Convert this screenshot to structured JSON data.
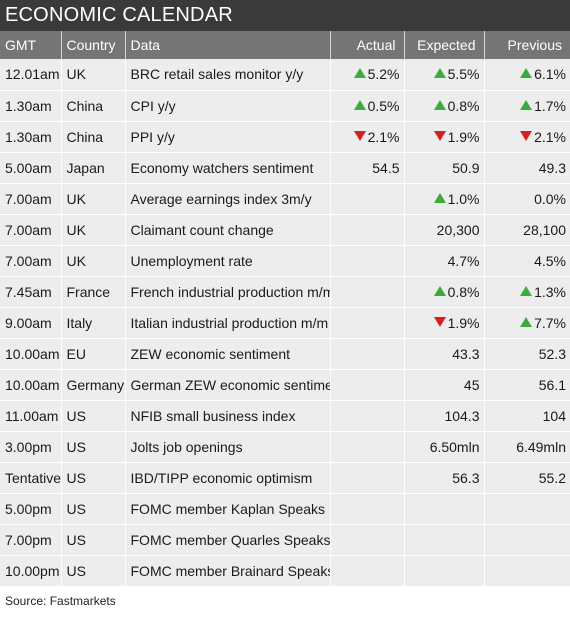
{
  "title": "ECONOMIC CALENDAR",
  "columns": {
    "gmt": "GMT",
    "country": "Country",
    "data": "Data",
    "actual": "Actual",
    "expected": "Expected",
    "previous": "Previous"
  },
  "colors": {
    "up": "#3cab3c",
    "down": "#d42020",
    "header": "#757575",
    "title": "#3a3a3a"
  },
  "rows": [
    {
      "gmt": "12.01am",
      "country": "UK",
      "data": "BRC retail sales monitor y/y",
      "actual": "5.2%",
      "actual_dir": "up",
      "expected": "5.5%",
      "expected_dir": "up",
      "previous": "6.1%",
      "previous_dir": "up"
    },
    {
      "gmt": "1.30am",
      "country": "China",
      "data": "CPI y/y",
      "actual": "0.5%",
      "actual_dir": "up",
      "expected": "0.8%",
      "expected_dir": "up",
      "previous": "1.7%",
      "previous_dir": "up"
    },
    {
      "gmt": "1.30am",
      "country": "China",
      "data": "PPI y/y",
      "actual": "2.1%",
      "actual_dir": "down",
      "expected": "1.9%",
      "expected_dir": "down",
      "previous": "2.1%",
      "previous_dir": "down"
    },
    {
      "gmt": "5.00am",
      "country": "Japan",
      "data": " Economy watchers sentiment",
      "actual": "54.5",
      "expected": "50.9",
      "previous": "49.3"
    },
    {
      "gmt": "7.00am",
      "country": "UK",
      "data": " Average earnings index 3m/y",
      "actual": "",
      "expected": "1.0%",
      "expected_dir": "up",
      "previous": "0.0%"
    },
    {
      "gmt": "7.00am",
      "country": "UK",
      "data": "Claimant count change",
      "actual": "",
      "expected": "20,300",
      "previous": "28,100"
    },
    {
      "gmt": "7.00am",
      "country": "UK",
      "data": "Unemployment rate",
      "actual": "",
      "expected": "4.7%",
      "previous": "4.5%"
    },
    {
      "gmt": "7.45am",
      "country": "France",
      "data": "French industrial production m/m",
      "actual": "",
      "expected": "0.8%",
      "expected_dir": "up",
      "previous": "1.3%",
      "previous_dir": "up"
    },
    {
      "gmt": "9.00am",
      "country": "Italy",
      "data": "Italian industrial production m/m",
      "actual": "",
      "expected": "1.9%",
      "expected_dir": "down",
      "previous": "7.7%",
      "previous_dir": "up"
    },
    {
      "gmt": "10.00am",
      "country": "EU",
      "data": " ZEW economic sentiment",
      "actual": "",
      "expected": "43.3",
      "previous": "52.3"
    },
    {
      "gmt": "10.00am",
      "country": "Germany",
      "data": "German ZEW economic sentiment",
      "actual": "",
      "expected": "45",
      "previous": "56.1"
    },
    {
      "gmt": "11.00am",
      "country": "US",
      "data": "NFIB small business index",
      "actual": "",
      "expected": "104.3",
      "previous": "104"
    },
    {
      "gmt": "3.00pm",
      "country": "US",
      "data": "Jolts job openings",
      "actual": "",
      "expected": "6.50mln",
      "previous": "6.49mln"
    },
    {
      "gmt": "Tentative",
      "country": "US",
      "data": " IBD/TIPP economic optimism",
      "actual": "",
      "expected": "56.3",
      "previous": "55.2"
    },
    {
      "gmt": "5.00pm",
      "country": "US",
      "data": " FOMC member Kaplan Speaks",
      "actual": "",
      "expected": "",
      "previous": ""
    },
    {
      "gmt": "7.00pm",
      "country": "US",
      "data": "FOMC member Quarles Speaks",
      "actual": "",
      "expected": "",
      "previous": ""
    },
    {
      "gmt": "10.00pm",
      "country": "US",
      "data": " FOMC member Brainard Speaks",
      "actual": "",
      "expected": "",
      "previous": ""
    }
  ],
  "source": "Source: Fastmarkets"
}
